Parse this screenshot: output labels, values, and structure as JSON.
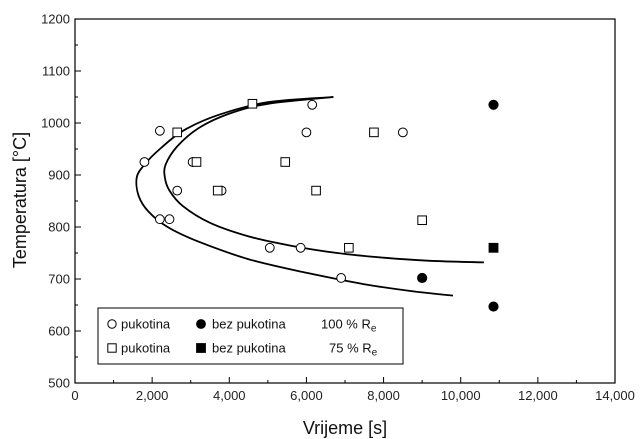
{
  "chart_data": {
    "type": "scatter",
    "title": "",
    "xlabel": "Vrijeme [s]",
    "ylabel": "Temperatura [°C]",
    "xlim": [
      0,
      14000
    ],
    "ylim": [
      500,
      1200
    ],
    "xticks": [
      0,
      2000,
      4000,
      6000,
      8000,
      10000,
      12000,
      14000
    ],
    "xtick_labels": [
      "0",
      "2,000",
      "4,000",
      "6,000",
      "8,000",
      "10,000",
      "12,000",
      "14,000"
    ],
    "yticks": [
      500,
      600,
      700,
      800,
      900,
      1000,
      1100,
      1200
    ],
    "ytick_labels": [
      "500",
      "600",
      "700",
      "800",
      "900",
      "1000",
      "1100",
      "1200"
    ],
    "grid": false,
    "legend": {
      "position": "bottom-left",
      "rows": [
        {
          "open_label": "pukotina",
          "filled_label": "bez pukotina",
          "level_number": "100 % R",
          "level_subscript": "e"
        },
        {
          "open_label": "pukotina",
          "filled_label": "bez pukotina",
          "level_number": "75 % R",
          "level_subscript": "e"
        }
      ]
    },
    "series": [
      {
        "marker": "circle-open",
        "points": [
          [
            1800,
            925
          ],
          [
            2200,
            985
          ],
          [
            2200,
            815
          ],
          [
            2450,
            815
          ],
          [
            2650,
            870
          ],
          [
            3050,
            925
          ],
          [
            3800,
            870
          ],
          [
            5050,
            760
          ],
          [
            5850,
            760
          ],
          [
            6000,
            982
          ],
          [
            6150,
            1035
          ],
          [
            6900,
            702
          ],
          [
            8500,
            982
          ]
        ]
      },
      {
        "marker": "circle-filled",
        "points": [
          [
            9000,
            702
          ],
          [
            10850,
            1035
          ],
          [
            10850,
            647
          ]
        ]
      },
      {
        "marker": "square-open",
        "points": [
          [
            2650,
            982
          ],
          [
            3150,
            925
          ],
          [
            3700,
            870
          ],
          [
            4600,
            1037
          ],
          [
            5450,
            925
          ],
          [
            6250,
            870
          ],
          [
            7100,
            760
          ],
          [
            7750,
            982
          ],
          [
            9000,
            813
          ]
        ]
      },
      {
        "marker": "square-filled",
        "points": [
          [
            10850,
            760
          ]
        ]
      }
    ],
    "curves": [
      {
        "style": "solid-black",
        "points": [
          [
            6700,
            1050
          ],
          [
            5000,
            1040
          ],
          [
            3700,
            1015
          ],
          [
            2800,
            985
          ],
          [
            2200,
            950
          ],
          [
            1800,
            920
          ],
          [
            1600,
            895
          ],
          [
            1650,
            860
          ],
          [
            1900,
            830
          ],
          [
            2400,
            800
          ],
          [
            3200,
            772
          ],
          [
            4500,
            738
          ],
          [
            6000,
            712
          ],
          [
            7500,
            690
          ],
          [
            8700,
            677
          ],
          [
            9800,
            668
          ]
        ]
      },
      {
        "style": "solid-black",
        "points": [
          [
            6700,
            1050
          ],
          [
            5000,
            1037
          ],
          [
            4000,
            1018
          ],
          [
            3200,
            990
          ],
          [
            2650,
            955
          ],
          [
            2350,
            920
          ],
          [
            2330,
            895
          ],
          [
            2450,
            870
          ],
          [
            2800,
            840
          ],
          [
            3500,
            808
          ],
          [
            4500,
            782
          ],
          [
            5600,
            764
          ],
          [
            6800,
            750
          ],
          [
            8000,
            741
          ],
          [
            9200,
            735
          ],
          [
            10600,
            732
          ]
        ]
      }
    ]
  }
}
